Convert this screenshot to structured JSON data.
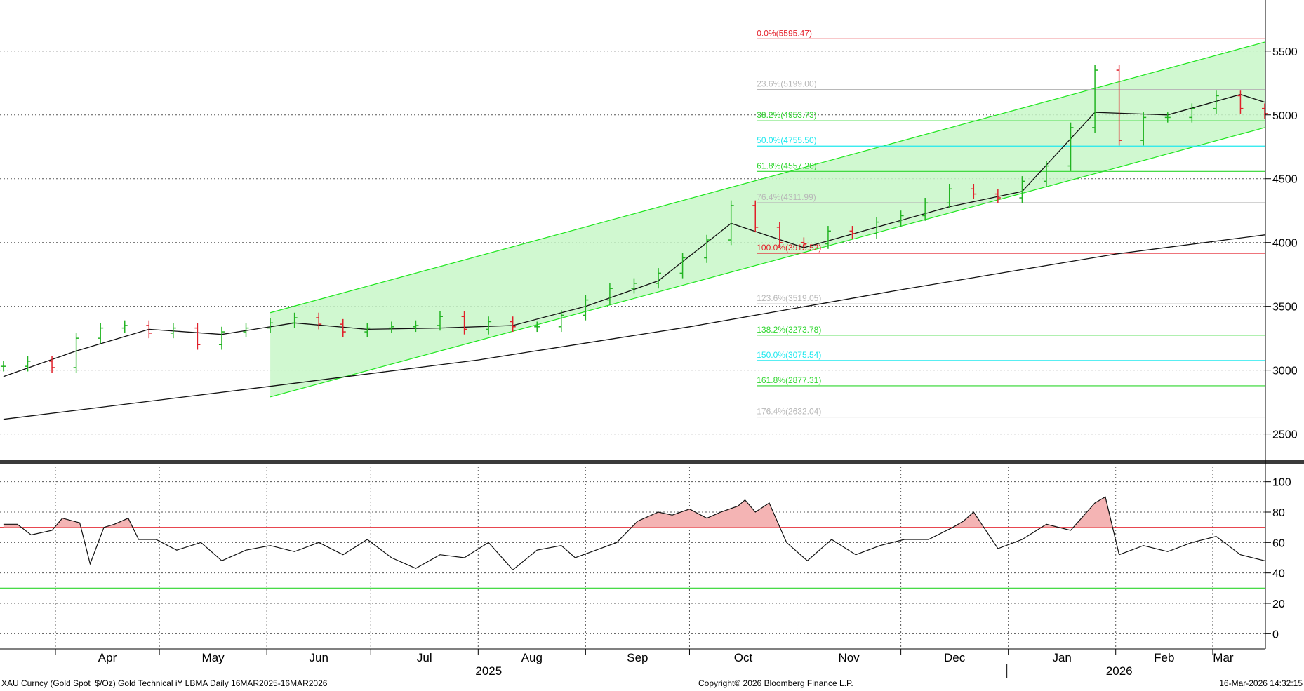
{
  "footer": {
    "left": "XAU Curncy (Gold Spot  $/Oz) Gold Technical iY LBMA Daily 16MAR2025-16MAR2026",
    "center": "Copyright© 2026 Bloomberg Finance L.P.",
    "right": "16-Mar-2026 14:32:15"
  },
  "colors": {
    "up_bar": "#22b422",
    "down_bar": "#e0202a",
    "channel": "#1ee61e",
    "channel_fill": "#c8f7c8",
    "fib_red": "#e4222c",
    "fib_grey": "#b8b8b8",
    "fib_green": "#2ed62e",
    "fib_cyan": "#20e8ee",
    "rsi_fill": "#f4b4b4"
  },
  "chart_data": [
    {
      "type": "line",
      "name": "price",
      "ylim": [
        2300,
        5900
      ],
      "yticks": [
        2500,
        3000,
        3500,
        4000,
        4500,
        5000,
        5500
      ],
      "ytick_labels": [
        "2500",
        "3000",
        "3500",
        "4000",
        "4500",
        "5000",
        "5500"
      ],
      "months": [
        "Apr",
        "May",
        "Jun",
        "Jul",
        "Aug",
        "Sep",
        "Oct",
        "Nov",
        "Dec",
        "Jan",
        "Feb",
        "Mar"
      ],
      "years": [
        "2025",
        "2026"
      ],
      "x_range": [
        "2025-03-16",
        "2026-03-16"
      ],
      "series": [
        {
          "role": "price_bars",
          "x": [
            "2025-03-17",
            "2025-03-24",
            "2025-03-31",
            "2025-04-07",
            "2025-04-14",
            "2025-04-21",
            "2025-04-28",
            "2025-05-05",
            "2025-05-12",
            "2025-05-19",
            "2025-05-26",
            "2025-06-02",
            "2025-06-09",
            "2025-06-16",
            "2025-06-23",
            "2025-06-30",
            "2025-07-07",
            "2025-07-14",
            "2025-07-21",
            "2025-07-28",
            "2025-08-04",
            "2025-08-11",
            "2025-08-18",
            "2025-08-25",
            "2025-09-01",
            "2025-09-08",
            "2025-09-15",
            "2025-09-22",
            "2025-09-29",
            "2025-10-06",
            "2025-10-13",
            "2025-10-20",
            "2025-10-27",
            "2025-11-03",
            "2025-11-10",
            "2025-11-17",
            "2025-11-24",
            "2025-12-01",
            "2025-12-08",
            "2025-12-15",
            "2025-12-22",
            "2025-12-29",
            "2026-01-05",
            "2026-01-12",
            "2026-01-19",
            "2026-01-26",
            "2026-02-02",
            "2026-02-09",
            "2026-02-16",
            "2026-02-23",
            "2026-03-02",
            "2026-03-09",
            "2026-03-16"
          ],
          "values": [
            3030,
            3070,
            3020,
            3250,
            3330,
            3350,
            3290,
            3330,
            3200,
            3300,
            3330,
            3370,
            3410,
            3360,
            3300,
            3330,
            3340,
            3350,
            3420,
            3320,
            3380,
            3340,
            3340,
            3430,
            3550,
            3640,
            3680,
            3760,
            3880,
            4020,
            4290,
            4120,
            4000,
            3990,
            4090,
            4070,
            4160,
            4210,
            4310,
            4420,
            4380,
            4350,
            4480,
            4600,
            4900,
            5350,
            4800,
            4980,
            4980,
            5050,
            5150,
            5050,
            5010
          ]
        },
        {
          "role": "short_moving_average",
          "x": [
            "2025-03-17",
            "2025-04-07",
            "2025-04-28",
            "2025-05-19",
            "2025-06-09",
            "2025-06-30",
            "2025-07-21",
            "2025-08-11",
            "2025-09-01",
            "2025-09-22",
            "2025-10-13",
            "2025-11-03",
            "2025-11-24",
            "2025-12-15",
            "2026-01-05",
            "2026-01-26",
            "2026-02-16",
            "2026-03-09",
            "2026-03-16"
          ],
          "values": [
            2950,
            3150,
            3320,
            3280,
            3370,
            3320,
            3330,
            3350,
            3500,
            3700,
            4150,
            3960,
            4120,
            4280,
            4400,
            5020,
            5000,
            5160,
            5100
          ]
        },
        {
          "role": "long_moving_average",
          "x": [
            "2025-03-17",
            "2025-06-01",
            "2025-08-01",
            "2025-10-01",
            "2025-12-01",
            "2026-02-01",
            "2026-03-16"
          ],
          "values": [
            2615,
            2870,
            3080,
            3340,
            3630,
            3910,
            4060
          ]
        }
      ],
      "channel": {
        "start": "2025-06-02",
        "end": "2026-03-16",
        "upper": [
          3450,
          5570
        ],
        "lower": [
          2790,
          4900
        ]
      },
      "fibonacci": [
        {
          "label": "0.0%(5595.47)",
          "value": 5595.47,
          "color": "fib_red"
        },
        {
          "label": "23.6%(5199.00)",
          "value": 5199.0,
          "color": "fib_grey"
        },
        {
          "label": "38.2%(4953.73)",
          "value": 4953.73,
          "color": "fib_green"
        },
        {
          "label": "50.0%(4755.50)",
          "value": 4755.5,
          "color": "fib_cyan"
        },
        {
          "label": "61.8%(4557.26)",
          "value": 4557.26,
          "color": "fib_green"
        },
        {
          "label": "76.4%(4311.99)",
          "value": 4311.99,
          "color": "fib_grey"
        },
        {
          "label": "100.0%(3915.52)",
          "value": 3915.52,
          "color": "fib_red"
        },
        {
          "label": "123.6%(3519.05)",
          "value": 3519.05,
          "color": "fib_grey"
        },
        {
          "label": "138.2%(3273.78)",
          "value": 3273.78,
          "color": "fib_green"
        },
        {
          "label": "150.0%(3075.54)",
          "value": 3075.54,
          "color": "fib_cyan"
        },
        {
          "label": "161.8%(2877.31)",
          "value": 2877.31,
          "color": "fib_green"
        },
        {
          "label": "176.4%(2632.04)",
          "value": 2632.04,
          "color": "fib_grey"
        }
      ]
    },
    {
      "type": "area",
      "name": "rsi",
      "ylim": [
        -10,
        110
      ],
      "yticks": [
        0,
        20,
        40,
        60,
        80,
        100
      ],
      "ytick_labels": [
        "0",
        "20",
        "40",
        "60",
        "80",
        "100"
      ],
      "overbought": 70,
      "oversold": 30,
      "x": [
        "2025-03-17",
        "2025-03-21",
        "2025-03-25",
        "2025-03-31",
        "2025-04-03",
        "2025-04-08",
        "2025-04-11",
        "2025-04-15",
        "2025-04-18",
        "2025-04-22",
        "2025-04-25",
        "2025-04-30",
        "2025-05-06",
        "2025-05-13",
        "2025-05-19",
        "2025-05-26",
        "2025-06-02",
        "2025-06-09",
        "2025-06-16",
        "2025-06-23",
        "2025-06-30",
        "2025-07-07",
        "2025-07-14",
        "2025-07-21",
        "2025-07-28",
        "2025-08-04",
        "2025-08-11",
        "2025-08-18",
        "2025-08-25",
        "2025-08-29",
        "2025-09-04",
        "2025-09-10",
        "2025-09-16",
        "2025-09-22",
        "2025-09-26",
        "2025-10-01",
        "2025-10-06",
        "2025-10-10",
        "2025-10-15",
        "2025-10-17",
        "2025-10-20",
        "2025-10-24",
        "2025-10-29",
        "2025-11-04",
        "2025-11-11",
        "2025-11-18",
        "2025-11-25",
        "2025-12-02",
        "2025-12-09",
        "2025-12-16",
        "2025-12-19",
        "2025-12-22",
        "2025-12-29",
        "2026-01-05",
        "2026-01-12",
        "2026-01-19",
        "2026-01-26",
        "2026-01-29",
        "2026-02-02",
        "2026-02-09",
        "2026-02-16",
        "2026-02-23",
        "2026-03-02",
        "2026-03-09",
        "2026-03-16"
      ],
      "values": [
        72,
        72,
        65,
        68,
        76,
        73,
        46,
        70,
        72,
        76,
        62,
        62,
        55,
        60,
        48,
        55,
        58,
        54,
        60,
        52,
        62,
        50,
        43,
        52,
        50,
        60,
        42,
        55,
        58,
        50,
        55,
        60,
        74,
        80,
        78,
        82,
        76,
        80,
        84,
        88,
        80,
        86,
        60,
        48,
        62,
        52,
        58,
        62,
        62,
        70,
        74,
        80,
        56,
        62,
        72,
        68,
        86,
        90,
        52,
        58,
        54,
        60,
        64,
        52,
        48
      ]
    }
  ]
}
